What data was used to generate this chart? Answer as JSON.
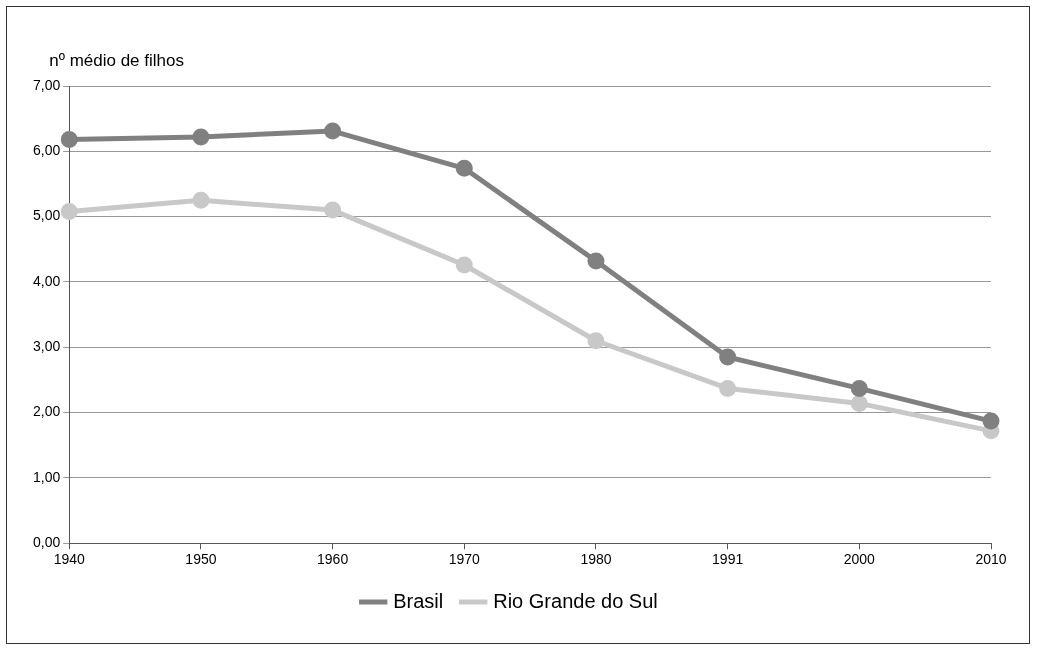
{
  "chart_data": {
    "type": "line",
    "ylabel": "nº médio de filhos",
    "categories": [
      "1940",
      "1950",
      "1960",
      "1970",
      "1980",
      "1991",
      "2000",
      "2010"
    ],
    "series": [
      {
        "name": "Brasil",
        "color": "#808080",
        "values": [
          6.18,
          6.22,
          6.31,
          5.74,
          4.32,
          2.85,
          2.37,
          1.87
        ]
      },
      {
        "name": "Rio Grande do Sul",
        "color": "#c8c8c8",
        "values": [
          5.08,
          5.25,
          5.1,
          4.26,
          3.1,
          2.37,
          2.14,
          1.72
        ]
      }
    ],
    "ylim": [
      0,
      7
    ],
    "yticks": [
      {
        "value": 0,
        "label": "0,00"
      },
      {
        "value": 1,
        "label": "1,00"
      },
      {
        "value": 2,
        "label": "2,00"
      },
      {
        "value": 3,
        "label": "3,00"
      },
      {
        "value": 4,
        "label": "4,00"
      },
      {
        "value": 5,
        "label": "5,00"
      },
      {
        "value": 6,
        "label": "6,00"
      },
      {
        "value": 7,
        "label": "7,00"
      }
    ],
    "grid": "y",
    "legend": "bottom",
    "marker": "circle",
    "line_style": "solid"
  }
}
